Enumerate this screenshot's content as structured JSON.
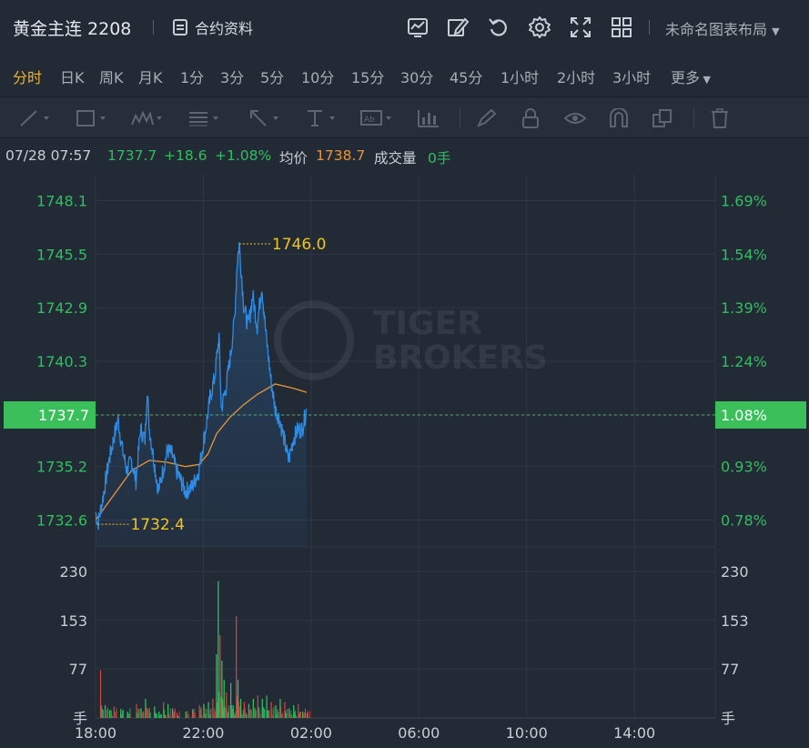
{
  "header": {
    "title": "黄金主连 2208",
    "contract_info_label": "合约资料",
    "layout_label": "未命名图表布局"
  },
  "periods": [
    "分时",
    "日K",
    "周K",
    "月K",
    "1分",
    "3分",
    "5分",
    "10分",
    "15分",
    "30分",
    "45分",
    "1小时",
    "2小时",
    "3小时",
    "更多"
  ],
  "active_period": "分时",
  "info": {
    "datetime": "07/28 07:57",
    "price": "1737.7",
    "change": "+18.6",
    "change_pct": "+1.08%",
    "avg_label": "均价",
    "avg_value": "1738.7",
    "volume_label": "成交量",
    "volume_value": "0手"
  },
  "watermark": {
    "line1": "TIGER",
    "line2": "BROKERS"
  },
  "colors": {
    "up": "#2fbf5f",
    "price_line": "#2d8ce6",
    "avg_line": "#e8953a",
    "current_tag": "#3bbf5a",
    "annot": "#f0c419"
  },
  "chart_data": {
    "type": "line",
    "title": "",
    "x_ticks": [
      "18:00",
      "22:00",
      "02:00",
      "06:00",
      "10:00",
      "14:00"
    ],
    "y_left_ticks": [
      "1748.1",
      "1745.5",
      "1742.9",
      "1740.3",
      "1737.7",
      "1735.2",
      "1732.6"
    ],
    "y_right_ticks": [
      "1.69%",
      "1.54%",
      "1.39%",
      "1.24%",
      "1.08%",
      "0.93%",
      "0.78%"
    ],
    "ylim": [
      1731.3,
      1749.4
    ],
    "current_price": "1737.7",
    "current_pct": "1.08%",
    "max_label": "1746.0",
    "min_label": "1732.4",
    "max_value": 1746.0,
    "min_value": 1732.4,
    "x_total_minutes": 1380,
    "price_series": [
      [
        0,
        1733.0
      ],
      [
        5,
        1732.4
      ],
      [
        15,
        1733.5
      ],
      [
        30,
        1735.5
      ],
      [
        40,
        1736.5
      ],
      [
        50,
        1737.5
      ],
      [
        60,
        1736.0
      ],
      [
        70,
        1735.0
      ],
      [
        80,
        1735.5
      ],
      [
        90,
        1734.5
      ],
      [
        100,
        1737.0
      ],
      [
        110,
        1736.5
      ],
      [
        115,
        1739.0
      ],
      [
        120,
        1737.0
      ],
      [
        130,
        1735.5
      ],
      [
        140,
        1734.0
      ],
      [
        150,
        1735.0
      ],
      [
        160,
        1736.0
      ],
      [
        170,
        1735.8
      ],
      [
        180,
        1735.0
      ],
      [
        190,
        1734.5
      ],
      [
        200,
        1734.0
      ],
      [
        215,
        1734.2
      ],
      [
        230,
        1735.0
      ],
      [
        245,
        1737.0
      ],
      [
        255,
        1738.5
      ],
      [
        265,
        1739.5
      ],
      [
        275,
        1741.5
      ],
      [
        280,
        1738.0
      ],
      [
        290,
        1739.0
      ],
      [
        300,
        1740.5
      ],
      [
        310,
        1742.5
      ],
      [
        315,
        1745.0
      ],
      [
        320,
        1746.0
      ],
      [
        325,
        1744.5
      ],
      [
        330,
        1743.0
      ],
      [
        340,
        1742.0
      ],
      [
        350,
        1743.5
      ],
      [
        360,
        1742.0
      ],
      [
        370,
        1744.0
      ],
      [
        380,
        1741.5
      ],
      [
        390,
        1739.5
      ],
      [
        400,
        1738.0
      ],
      [
        410,
        1737.5
      ],
      [
        420,
        1736.5
      ],
      [
        430,
        1735.5
      ],
      [
        440,
        1736.5
      ],
      [
        450,
        1737.0
      ],
      [
        460,
        1737.0
      ],
      [
        470,
        1738.0
      ]
    ],
    "avg_series": [
      [
        0,
        1732.6
      ],
      [
        40,
        1733.8
      ],
      [
        80,
        1735.0
      ],
      [
        120,
        1735.5
      ],
      [
        160,
        1735.4
      ],
      [
        200,
        1735.2
      ],
      [
        230,
        1735.3
      ],
      [
        250,
        1735.8
      ],
      [
        270,
        1736.8
      ],
      [
        300,
        1737.6
      ],
      [
        330,
        1738.2
      ],
      [
        360,
        1738.7
      ],
      [
        400,
        1739.2
      ],
      [
        440,
        1739.0
      ],
      [
        470,
        1738.8
      ]
    ],
    "volume_ticks": [
      "230",
      "153",
      "77",
      "手"
    ],
    "volume_ylim": [
      0,
      230
    ],
    "volume_series": [
      [
        10,
        75
      ],
      [
        20,
        20
      ],
      [
        30,
        12
      ],
      [
        40,
        18
      ],
      [
        55,
        14
      ],
      [
        70,
        10
      ],
      [
        90,
        22
      ],
      [
        100,
        15
      ],
      [
        110,
        30
      ],
      [
        115,
        12
      ],
      [
        130,
        18
      ],
      [
        140,
        10
      ],
      [
        150,
        25
      ],
      [
        160,
        22
      ],
      [
        170,
        15
      ],
      [
        180,
        8
      ],
      [
        200,
        10
      ],
      [
        215,
        14
      ],
      [
        230,
        20
      ],
      [
        240,
        22
      ],
      [
        250,
        25
      ],
      [
        260,
        30
      ],
      [
        268,
        100
      ],
      [
        272,
        215
      ],
      [
        276,
        130
      ],
      [
        280,
        90
      ],
      [
        285,
        60
      ],
      [
        290,
        40
      ],
      [
        300,
        55
      ],
      [
        305,
        20
      ],
      [
        312,
        160
      ],
      [
        316,
        60
      ],
      [
        322,
        30
      ],
      [
        330,
        25
      ],
      [
        340,
        22
      ],
      [
        350,
        30
      ],
      [
        360,
        35
      ],
      [
        370,
        30
      ],
      [
        380,
        35
      ],
      [
        390,
        25
      ],
      [
        400,
        20
      ],
      [
        410,
        30
      ],
      [
        420,
        25
      ],
      [
        430,
        15
      ],
      [
        440,
        20
      ],
      [
        450,
        22
      ],
      [
        460,
        10
      ],
      [
        470,
        8
      ]
    ]
  }
}
